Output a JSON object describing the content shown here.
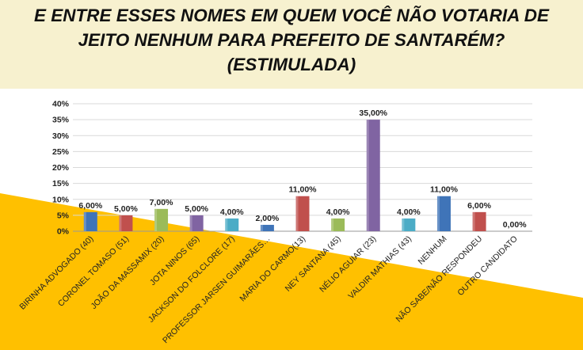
{
  "title": {
    "line1": "E ENTRE ESSES NOMES EM QUEM VOCÊ NÃO VOTARIA DE",
    "line2": "JEITO NENHUM PARA PREFEITO DE SANTARÉM?",
    "line3": "(ESTIMULADA)"
  },
  "colors": {
    "header_bg": "#f7f1cf",
    "accent_yellow": "#ffc000"
  },
  "chart_data": {
    "type": "bar",
    "title": "E ENTRE ESSES NOMES EM QUEM VOCÊ NÃO VOTARIA DE JEITO NENHUM PARA PREFEITO DE SANTARÉM? (ESTIMULADA)",
    "xlabel": "",
    "ylabel": "",
    "ylim": [
      0,
      40
    ],
    "yticks": [
      "0%",
      "5%",
      "10%",
      "15%",
      "20%",
      "25%",
      "30%",
      "35%",
      "40%"
    ],
    "grid": true,
    "legend": "none",
    "categories": [
      "BIRINHA ADVOGADO (40)",
      "CORONEL TOMASO (51)",
      "JOÃO DA MASSAMIX (20)",
      "JOTA NINOS (65)",
      "JACKSON DO FOLCLORE (17)",
      "PROFESSOR JARSEN GUIMARÃES…",
      "MARIA DO CARMO(13)",
      "NEY SANTANA (45)",
      "NÉLIO AGUIAR (23)",
      "VALDIR MATHIAS (43)",
      "NENHUM",
      "NÃO SABE/NÃO RESPONDEU",
      "OUTRO CANDIDATO"
    ],
    "values": [
      6,
      5,
      7,
      5,
      4,
      2,
      11,
      4,
      35,
      4,
      11,
      6,
      0
    ],
    "data_labels": [
      "6,00%",
      "5,00%",
      "7,00%",
      "5,00%",
      "4,00%",
      "2,00%",
      "11,00%",
      "4,00%",
      "35,00%",
      "4,00%",
      "11,00%",
      "6,00%",
      "0,00%"
    ],
    "colors": [
      "#3f74b8",
      "#c0504d",
      "#9bbb59",
      "#8064a2",
      "#4bacc6",
      "#3f74b8",
      "#c0504d",
      "#9bbb59",
      "#8064a2",
      "#4bacc6",
      "#3f74b8",
      "#c0504d",
      "#9bbb59"
    ]
  }
}
